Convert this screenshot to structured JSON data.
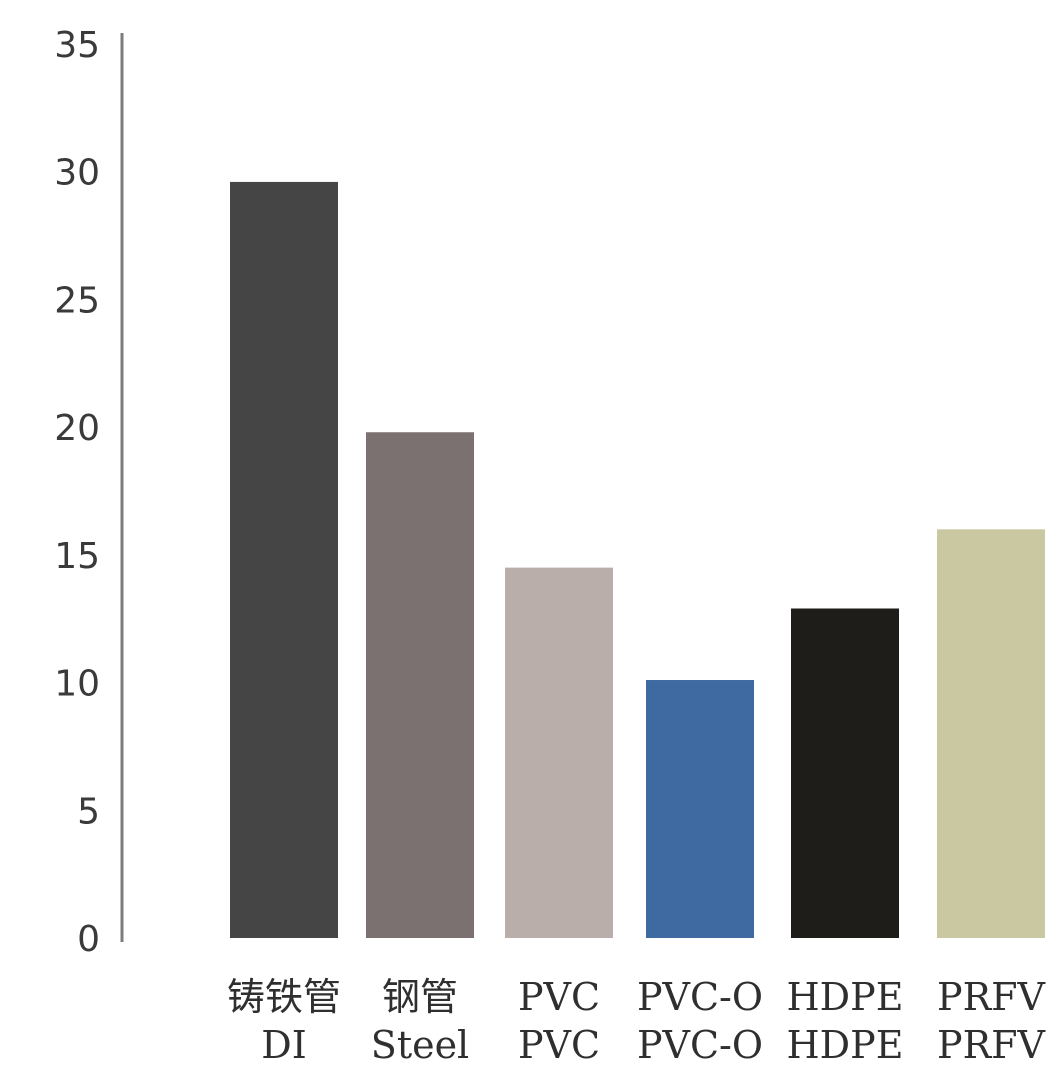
{
  "chart_data": {
    "type": "bar",
    "categories": [
      {
        "line1": "铸铁管",
        "line2": "DI"
      },
      {
        "line1": "钢管",
        "line2": "Steel"
      },
      {
        "line1": "PVC",
        "line2": "PVC"
      },
      {
        "line1": "PVC-O",
        "line2": "PVC-O"
      },
      {
        "line1": "HDPE",
        "line2": "HDPE"
      },
      {
        "line1": "PRFV",
        "line2": "PRFV"
      }
    ],
    "values": [
      29.6,
      19.8,
      14.5,
      10.1,
      12.9,
      16.0
    ],
    "colors": [
      "#454545",
      "#7b7171",
      "#b9aeaa",
      "#3e6aa1",
      "#1f1d1a",
      "#c9c8a0"
    ],
    "ylim": [
      0,
      35
    ],
    "yticks": [
      0,
      5,
      10,
      15,
      20,
      25,
      30,
      35
    ],
    "grid": false,
    "legend": "none",
    "axis_color": "#7d7d7d",
    "title": "",
    "xlabel": "",
    "ylabel": ""
  }
}
